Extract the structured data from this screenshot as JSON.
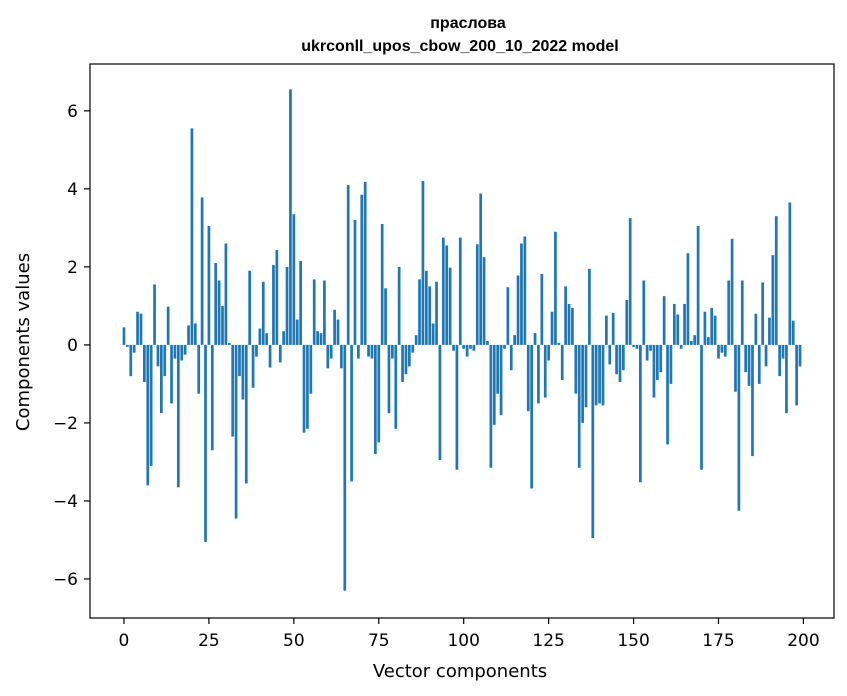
{
  "chart_data": {
    "type": "bar",
    "title": "праслова\nukrconll_upos_cbow_200_10_2022 model",
    "xlabel": "Vector components",
    "ylabel": "Components values",
    "xlim": [
      -10,
      209
    ],
    "ylim": [
      -7.0,
      7.2
    ],
    "xticks": [
      0,
      25,
      50,
      75,
      100,
      125,
      150,
      175,
      200
    ],
    "xtick_labels": [
      "0",
      "25",
      "50",
      "75",
      "100",
      "125",
      "150",
      "175",
      "200"
    ],
    "yticks": [
      -6,
      -4,
      -2,
      0,
      2,
      4,
      6
    ],
    "ytick_labels": [
      "−6",
      "−4",
      "−2",
      "0",
      "2",
      "4",
      "6"
    ],
    "grid": false,
    "bar_color": "#1f77b4",
    "x": [
      0,
      1,
      2,
      3,
      4,
      5,
      6,
      7,
      8,
      9,
      10,
      11,
      12,
      13,
      14,
      15,
      16,
      17,
      18,
      19,
      20,
      21,
      22,
      23,
      24,
      25,
      26,
      27,
      28,
      29,
      30,
      31,
      32,
      33,
      34,
      35,
      36,
      37,
      38,
      39,
      40,
      41,
      42,
      43,
      44,
      45,
      46,
      47,
      48,
      49,
      50,
      51,
      52,
      53,
      54,
      55,
      56,
      57,
      58,
      59,
      60,
      61,
      62,
      63,
      64,
      65,
      66,
      67,
      68,
      69,
      70,
      71,
      72,
      73,
      74,
      75,
      76,
      77,
      78,
      79,
      80,
      81,
      82,
      83,
      84,
      85,
      86,
      87,
      88,
      89,
      90,
      91,
      92,
      93,
      94,
      95,
      96,
      97,
      98,
      99,
      100,
      101,
      102,
      103,
      104,
      105,
      106,
      107,
      108,
      109,
      110,
      111,
      112,
      113,
      114,
      115,
      116,
      117,
      118,
      119,
      120,
      121,
      122,
      123,
      124,
      125,
      126,
      127,
      128,
      129,
      130,
      131,
      132,
      133,
      134,
      135,
      136,
      137,
      138,
      139,
      140,
      141,
      142,
      143,
      144,
      145,
      146,
      147,
      148,
      149,
      150,
      151,
      152,
      153,
      154,
      155,
      156,
      157,
      158,
      159,
      160,
      161,
      162,
      163,
      164,
      165,
      166,
      167,
      168,
      169,
      170,
      171,
      172,
      173,
      174,
      175,
      176,
      177,
      178,
      179,
      180,
      181,
      182,
      183,
      184,
      185,
      186,
      187,
      188,
      189,
      190,
      191,
      192,
      193,
      194,
      195,
      196,
      197,
      198,
      199
    ],
    "values": [
      0.45,
      -0.05,
      -0.8,
      -0.2,
      0.85,
      0.8,
      -0.95,
      -3.6,
      -3.1,
      1.55,
      -0.55,
      -1.75,
      -0.8,
      0.98,
      -1.5,
      -0.35,
      -3.65,
      -0.4,
      -0.25,
      0.5,
      5.55,
      0.55,
      -1.25,
      3.78,
      -5.05,
      3.05,
      -2.7,
      2.1,
      1.65,
      1.0,
      2.6,
      0.05,
      -2.35,
      -4.45,
      -0.8,
      -1.4,
      -3.55,
      1.9,
      -1.1,
      -0.3,
      0.42,
      1.62,
      0.3,
      -0.58,
      2.05,
      2.43,
      -0.45,
      0.35,
      2.0,
      6.55,
      3.35,
      0.65,
      2.15,
      -2.25,
      -2.15,
      -1.25,
      1.68,
      0.35,
      0.3,
      1.65,
      -0.6,
      -0.35,
      0.9,
      0.65,
      -0.6,
      -6.3,
      4.1,
      -3.5,
      3.2,
      -0.35,
      3.85,
      4.18,
      -0.3,
      -0.35,
      -2.8,
      -2.5,
      3.1,
      1.45,
      -1.75,
      -0.35,
      -2.15,
      2.0,
      -0.95,
      -0.75,
      -0.55,
      -0.2,
      0.25,
      1.68,
      4.2,
      1.9,
      1.5,
      0.55,
      1.62,
      -2.95,
      2.75,
      2.55,
      1.98,
      -0.15,
      -3.2,
      2.75,
      -0.1,
      -0.3,
      -0.1,
      -0.15,
      2.58,
      3.88,
      2.25,
      0.1,
      -3.15,
      -2.05,
      -1.25,
      -1.8,
      -0.1,
      1.48,
      -0.65,
      0.25,
      1.78,
      2.6,
      2.78,
      -1.7,
      -3.68,
      0.3,
      -1.5,
      1.82,
      -1.35,
      -0.4,
      0.85,
      2.9,
      0.05,
      -0.9,
      1.5,
      1.05,
      0.95,
      -1.25,
      -3.15,
      -2.0,
      -1.6,
      1.95,
      -4.95,
      -1.55,
      -1.5,
      -1.55,
      0.75,
      -0.5,
      0.82,
      -0.75,
      -0.95,
      -0.65,
      1.15,
      3.25,
      -0.05,
      -0.1,
      -3.52,
      1.65,
      -0.4,
      -0.15,
      -1.35,
      -0.9,
      -0.7,
      1.25,
      -2.55,
      -1.0,
      1.05,
      0.78,
      -0.1,
      1.05,
      2.35,
      0.1,
      0.25,
      3.05,
      -3.2,
      0.85,
      0.2,
      0.95,
      0.75,
      -0.35,
      -0.2,
      -0.3,
      1.65,
      2.72,
      -1.2,
      -4.25,
      1.65,
      -0.7,
      -1.05,
      -2.85,
      0.8,
      -1.0,
      1.6,
      -0.55,
      0.7,
      2.3,
      3.3,
      -0.8,
      -0.35,
      -1.75,
      3.65,
      0.62,
      -1.55,
      -0.55
    ]
  }
}
